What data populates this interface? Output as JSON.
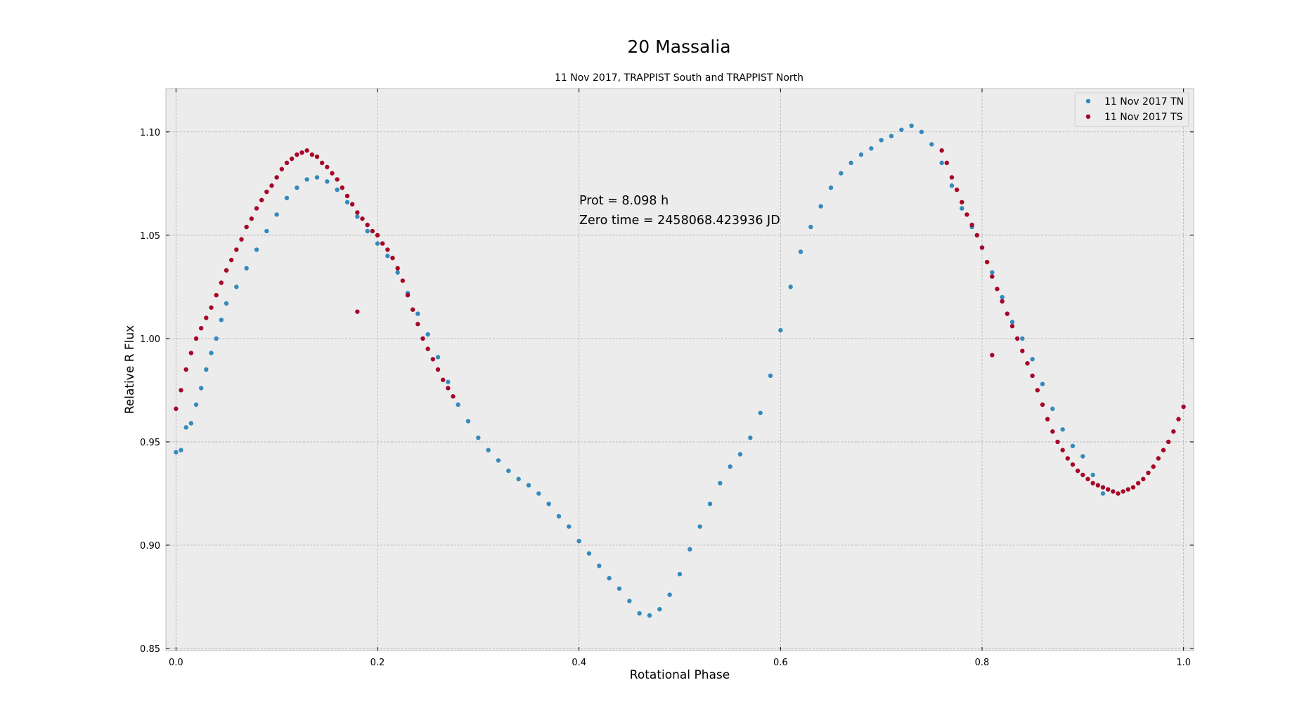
{
  "chart_data": {
    "type": "scatter",
    "title": "20 Massalia",
    "subtitle": "11 Nov 2017, TRAPPIST South and TRAPPIST North",
    "xlabel": "Rotational Phase",
    "ylabel": "Relative R Flux",
    "xlim": [
      -0.01,
      1.01
    ],
    "ylim": [
      0.849,
      1.121
    ],
    "x_ticks": [
      0.0,
      0.2,
      0.4,
      0.6,
      0.8,
      1.0
    ],
    "x_tick_labels": [
      "0.0",
      "0.2",
      "0.4",
      "0.6",
      "0.8",
      "1.0"
    ],
    "y_ticks": [
      0.85,
      0.9,
      0.95,
      1.0,
      1.05,
      1.1
    ],
    "y_tick_labels": [
      "0.85",
      "0.90",
      "0.95",
      "1.00",
      "1.05",
      "1.10"
    ],
    "grid": true,
    "legend_position": "top-right",
    "annotations": [
      "Prot = 8.098 h",
      "Zero time = 2458068.423936 JD"
    ],
    "series": [
      {
        "name": "11 Nov 2017 TN",
        "color": "#348ABD",
        "points": [
          [
            0.0,
            0.945
          ],
          [
            0.005,
            0.946
          ],
          [
            0.01,
            0.957
          ],
          [
            0.015,
            0.959
          ],
          [
            0.02,
            0.968
          ],
          [
            0.025,
            0.976
          ],
          [
            0.03,
            0.985
          ],
          [
            0.035,
            0.993
          ],
          [
            0.04,
            1.0
          ],
          [
            0.045,
            1.009
          ],
          [
            0.05,
            1.017
          ],
          [
            0.06,
            1.025
          ],
          [
            0.07,
            1.034
          ],
          [
            0.08,
            1.043
          ],
          [
            0.09,
            1.052
          ],
          [
            0.1,
            1.06
          ],
          [
            0.11,
            1.068
          ],
          [
            0.12,
            1.073
          ],
          [
            0.13,
            1.077
          ],
          [
            0.14,
            1.078
          ],
          [
            0.15,
            1.076
          ],
          [
            0.16,
            1.072
          ],
          [
            0.17,
            1.066
          ],
          [
            0.18,
            1.059
          ],
          [
            0.19,
            1.052
          ],
          [
            0.2,
            1.046
          ],
          [
            0.21,
            1.04
          ],
          [
            0.22,
            1.032
          ],
          [
            0.23,
            1.022
          ],
          [
            0.24,
            1.012
          ],
          [
            0.25,
            1.002
          ],
          [
            0.26,
            0.991
          ],
          [
            0.27,
            0.979
          ],
          [
            0.28,
            0.968
          ],
          [
            0.29,
            0.96
          ],
          [
            0.3,
            0.952
          ],
          [
            0.31,
            0.946
          ],
          [
            0.32,
            0.941
          ],
          [
            0.33,
            0.936
          ],
          [
            0.34,
            0.932
          ],
          [
            0.35,
            0.929
          ],
          [
            0.36,
            0.925
          ],
          [
            0.37,
            0.92
          ],
          [
            0.38,
            0.914
          ],
          [
            0.39,
            0.909
          ],
          [
            0.4,
            0.902
          ],
          [
            0.41,
            0.896
          ],
          [
            0.42,
            0.89
          ],
          [
            0.43,
            0.884
          ],
          [
            0.44,
            0.879
          ],
          [
            0.45,
            0.873
          ],
          [
            0.46,
            0.867
          ],
          [
            0.47,
            0.866
          ],
          [
            0.48,
            0.869
          ],
          [
            0.49,
            0.876
          ],
          [
            0.5,
            0.886
          ],
          [
            0.51,
            0.898
          ],
          [
            0.52,
            0.909
          ],
          [
            0.53,
            0.92
          ],
          [
            0.54,
            0.93
          ],
          [
            0.55,
            0.938
          ],
          [
            0.56,
            0.944
          ],
          [
            0.57,
            0.952
          ],
          [
            0.58,
            0.964
          ],
          [
            0.59,
            0.982
          ],
          [
            0.6,
            1.004
          ],
          [
            0.61,
            1.025
          ],
          [
            0.62,
            1.042
          ],
          [
            0.63,
            1.054
          ],
          [
            0.64,
            1.064
          ],
          [
            0.65,
            1.073
          ],
          [
            0.66,
            1.08
          ],
          [
            0.67,
            1.085
          ],
          [
            0.68,
            1.089
          ],
          [
            0.69,
            1.092
          ],
          [
            0.7,
            1.096
          ],
          [
            0.71,
            1.098
          ],
          [
            0.72,
            1.101
          ],
          [
            0.73,
            1.103
          ],
          [
            0.74,
            1.1
          ],
          [
            0.75,
            1.094
          ],
          [
            0.76,
            1.085
          ],
          [
            0.77,
            1.074
          ],
          [
            0.78,
            1.063
          ],
          [
            0.79,
            1.054
          ],
          [
            0.8,
            1.044
          ],
          [
            0.81,
            1.032
          ],
          [
            0.82,
            1.02
          ],
          [
            0.83,
            1.008
          ],
          [
            0.84,
            1.0
          ],
          [
            0.85,
            0.99
          ],
          [
            0.86,
            0.978
          ],
          [
            0.87,
            0.966
          ],
          [
            0.88,
            0.956
          ],
          [
            0.89,
            0.948
          ],
          [
            0.9,
            0.943
          ],
          [
            0.91,
            0.934
          ],
          [
            0.92,
            0.925
          ]
        ]
      },
      {
        "name": "11 Nov 2017 TS",
        "color": "#A60628",
        "points": [
          [
            0.0,
            0.966
          ],
          [
            0.005,
            0.975
          ],
          [
            0.01,
            0.985
          ],
          [
            0.015,
            0.993
          ],
          [
            0.02,
            1.0
          ],
          [
            0.025,
            1.005
          ],
          [
            0.03,
            1.01
          ],
          [
            0.035,
            1.015
          ],
          [
            0.04,
            1.021
          ],
          [
            0.045,
            1.027
          ],
          [
            0.05,
            1.033
          ],
          [
            0.055,
            1.038
          ],
          [
            0.06,
            1.043
          ],
          [
            0.065,
            1.048
          ],
          [
            0.07,
            1.054
          ],
          [
            0.075,
            1.058
          ],
          [
            0.08,
            1.063
          ],
          [
            0.085,
            1.067
          ],
          [
            0.09,
            1.071
          ],
          [
            0.095,
            1.074
          ],
          [
            0.1,
            1.078
          ],
          [
            0.105,
            1.082
          ],
          [
            0.11,
            1.085
          ],
          [
            0.115,
            1.087
          ],
          [
            0.12,
            1.089
          ],
          [
            0.125,
            1.09
          ],
          [
            0.13,
            1.091
          ],
          [
            0.135,
            1.089
          ],
          [
            0.14,
            1.088
          ],
          [
            0.145,
            1.085
          ],
          [
            0.15,
            1.083
          ],
          [
            0.155,
            1.08
          ],
          [
            0.16,
            1.077
          ],
          [
            0.165,
            1.073
          ],
          [
            0.17,
            1.069
          ],
          [
            0.175,
            1.065
          ],
          [
            0.18,
            1.061
          ],
          [
            0.185,
            1.058
          ],
          [
            0.19,
            1.055
          ],
          [
            0.195,
            1.052
          ],
          [
            0.2,
            1.05
          ],
          [
            0.205,
            1.046
          ],
          [
            0.21,
            1.043
          ],
          [
            0.215,
            1.039
          ],
          [
            0.22,
            1.034
          ],
          [
            0.225,
            1.028
          ],
          [
            0.23,
            1.021
          ],
          [
            0.235,
            1.014
          ],
          [
            0.24,
            1.007
          ],
          [
            0.245,
            1.0
          ],
          [
            0.25,
            0.995
          ],
          [
            0.255,
            0.99
          ],
          [
            0.26,
            0.985
          ],
          [
            0.265,
            0.98
          ],
          [
            0.27,
            0.976
          ],
          [
            0.275,
            0.972
          ],
          [
            0.18,
            1.013
          ],
          [
            0.76,
            1.091
          ],
          [
            0.765,
            1.085
          ],
          [
            0.77,
            1.078
          ],
          [
            0.775,
            1.072
          ],
          [
            0.78,
            1.066
          ],
          [
            0.785,
            1.06
          ],
          [
            0.79,
            1.055
          ],
          [
            0.795,
            1.05
          ],
          [
            0.8,
            1.044
          ],
          [
            0.805,
            1.037
          ],
          [
            0.81,
            1.03
          ],
          [
            0.815,
            1.024
          ],
          [
            0.82,
            1.018
          ],
          [
            0.825,
            1.012
          ],
          [
            0.83,
            1.006
          ],
          [
            0.835,
            1.0
          ],
          [
            0.84,
            0.994
          ],
          [
            0.845,
            0.988
          ],
          [
            0.85,
            0.982
          ],
          [
            0.855,
            0.975
          ],
          [
            0.86,
            0.968
          ],
          [
            0.865,
            0.961
          ],
          [
            0.87,
            0.955
          ],
          [
            0.875,
            0.95
          ],
          [
            0.88,
            0.946
          ],
          [
            0.885,
            0.942
          ],
          [
            0.89,
            0.939
          ],
          [
            0.895,
            0.936
          ],
          [
            0.9,
            0.934
          ],
          [
            0.905,
            0.932
          ],
          [
            0.91,
            0.93
          ],
          [
            0.915,
            0.929
          ],
          [
            0.92,
            0.928
          ],
          [
            0.925,
            0.927
          ],
          [
            0.93,
            0.926
          ],
          [
            0.935,
            0.925
          ],
          [
            0.94,
            0.926
          ],
          [
            0.945,
            0.927
          ],
          [
            0.95,
            0.928
          ],
          [
            0.955,
            0.93
          ],
          [
            0.96,
            0.932
          ],
          [
            0.965,
            0.935
          ],
          [
            0.97,
            0.938
          ],
          [
            0.975,
            0.942
          ],
          [
            0.98,
            0.946
          ],
          [
            0.985,
            0.95
          ],
          [
            0.99,
            0.955
          ],
          [
            0.995,
            0.961
          ],
          [
            1.0,
            0.967
          ],
          [
            0.81,
            0.992
          ]
        ]
      }
    ]
  }
}
